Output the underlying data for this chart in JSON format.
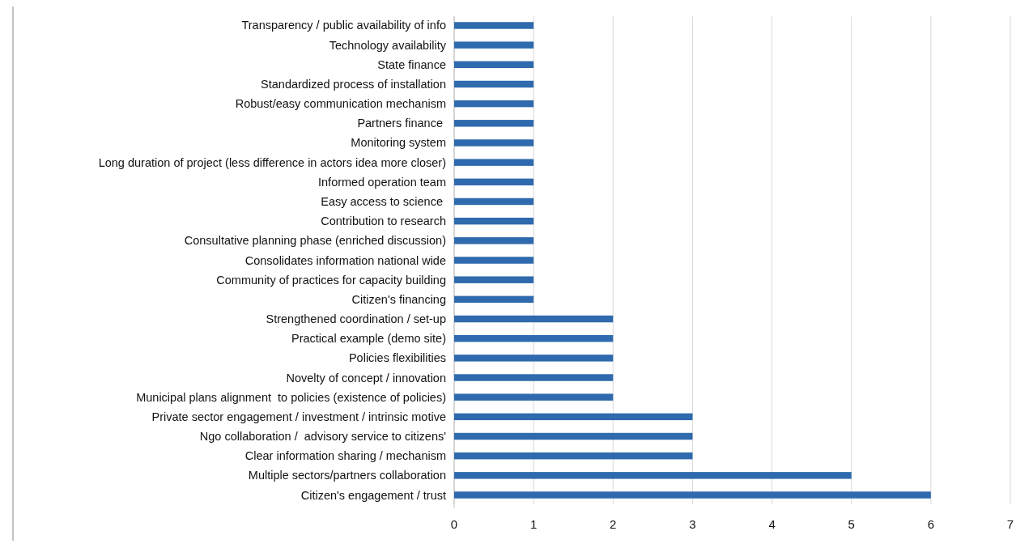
{
  "chart_data": {
    "type": "bar",
    "orientation": "horizontal",
    "categories": [
      "Transparency / public availability of info",
      "Technology availability",
      "State finance",
      "Standardized process of installation",
      "Robust/easy communication mechanism",
      "Partners finance ",
      "Monitoring system",
      "Long duration of project (less difference in actors idea more closer)",
      "Informed operation team",
      "Easy access to science ",
      "Contribution to research",
      "Consultative planning phase (enriched discussion)",
      "Consolidates information national wide",
      "Community of practices for capacity building",
      "Citizen's financing",
      "Strengthened coordination / set-up",
      "Practical example (demo site)",
      "Policies flexibilities",
      "Novelty of concept / innovation",
      "Municipal plans alignment  to policies (existence of policies)",
      "Private sector engagement / investment / intrinsic motive",
      "Ngo collaboration /  advisory service to citizens'",
      "Clear information sharing / mechanism",
      "Multiple sectors/partners collaboration",
      "Citizen's engagement / trust"
    ],
    "values": [
      1,
      1,
      1,
      1,
      1,
      1,
      1,
      1,
      1,
      1,
      1,
      1,
      1,
      1,
      1,
      2,
      2,
      2,
      2,
      2,
      3,
      3,
      3,
      5,
      6
    ],
    "color": "#2e6aad",
    "xlim": [
      0,
      7
    ],
    "xticks": [
      0,
      1,
      2,
      3,
      4,
      5,
      6,
      7
    ],
    "grid": "x"
  }
}
